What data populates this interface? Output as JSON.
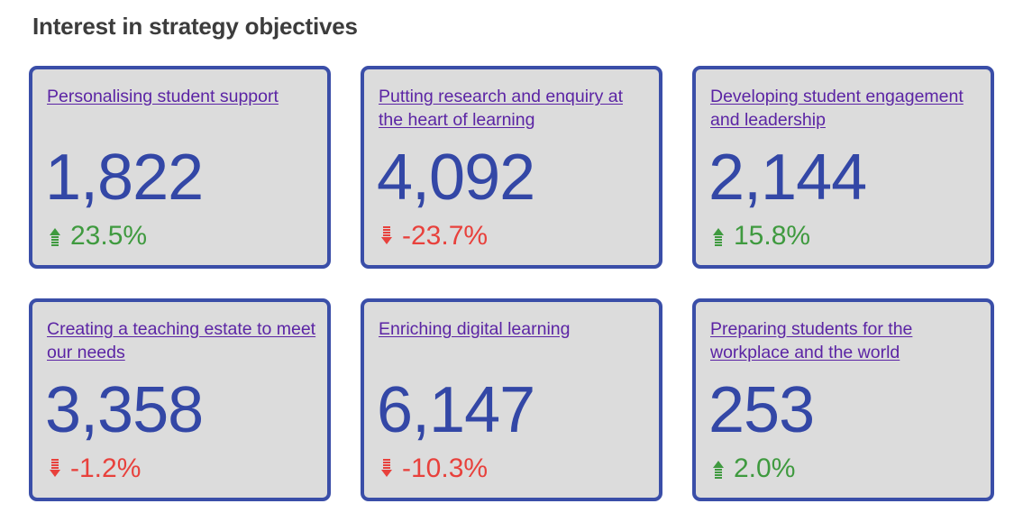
{
  "heading": "Interest in strategy objectives",
  "colors": {
    "card_border": "#3a4ea8",
    "card_background": "#dcdcdc",
    "value": "#3347a6",
    "link": "#5b24a4",
    "positive": "#3f9a3f",
    "negative": "#e8413c"
  },
  "cards": [
    {
      "title": "Personalising student support",
      "value": "1,822",
      "change": "23.5%",
      "direction": "up",
      "icon": "arrow-up-icon"
    },
    {
      "title": "Putting research and enquiry at the heart of learning",
      "value": "4,092",
      "change": "-23.7%",
      "direction": "down",
      "icon": "arrow-down-icon"
    },
    {
      "title": "Developing student engagement and leadership",
      "value": "2,144",
      "change": "15.8%",
      "direction": "up",
      "icon": "arrow-up-icon"
    },
    {
      "title": "Creating a teaching estate to meet our needs",
      "value": "3,358",
      "change": "-1.2%",
      "direction": "down",
      "icon": "arrow-down-icon"
    },
    {
      "title": "Enriching digital learning",
      "value": "6,147",
      "change": "-10.3%",
      "direction": "down",
      "icon": "arrow-down-icon"
    },
    {
      "title": "Preparing students for the workplace and the world",
      "value": "253",
      "change": "2.0%",
      "direction": "up",
      "icon": "arrow-up-icon"
    }
  ]
}
